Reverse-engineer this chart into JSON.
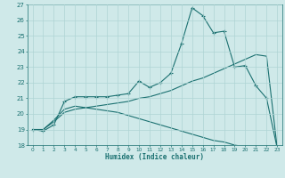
{
  "xlabel": "Humidex (Indice chaleur)",
  "bg_color": "#cfe9e9",
  "line_color": "#1a7070",
  "grid_color": "#aed4d4",
  "xlim": [
    -0.5,
    23.5
  ],
  "ylim": [
    18,
    27
  ],
  "xticks": [
    0,
    1,
    2,
    3,
    4,
    5,
    6,
    7,
    8,
    9,
    10,
    11,
    12,
    13,
    14,
    15,
    16,
    17,
    18,
    19,
    20,
    21,
    22,
    23
  ],
  "yticks": [
    18,
    19,
    20,
    21,
    22,
    23,
    24,
    25,
    26,
    27
  ],
  "line1_x": [
    0,
    1,
    2,
    3,
    4,
    5,
    6,
    7,
    8,
    9,
    10,
    11,
    12,
    13,
    14,
    15,
    16,
    17,
    18,
    19,
    20,
    21,
    22,
    23
  ],
  "line1_y": [
    19.0,
    18.9,
    19.3,
    20.8,
    21.1,
    21.1,
    21.1,
    21.1,
    21.2,
    21.3,
    22.1,
    21.7,
    22.0,
    22.6,
    24.5,
    26.8,
    26.3,
    25.2,
    25.3,
    23.0,
    23.1,
    21.8,
    21.0,
    17.8
  ],
  "line2_x": [
    0,
    1,
    2,
    3,
    4,
    5,
    6,
    7,
    8,
    9,
    10,
    11,
    12,
    13,
    14,
    15,
    16,
    17,
    18,
    19,
    20,
    21,
    22,
    23
  ],
  "line2_y": [
    19.0,
    19.0,
    19.5,
    20.1,
    20.3,
    20.4,
    20.5,
    20.6,
    20.7,
    20.8,
    21.0,
    21.1,
    21.3,
    21.5,
    21.8,
    22.1,
    22.3,
    22.6,
    22.9,
    23.2,
    23.5,
    23.8,
    23.7,
    17.8
  ],
  "line3_x": [
    0,
    1,
    2,
    3,
    4,
    5,
    6,
    7,
    8,
    9,
    10,
    11,
    12,
    13,
    14,
    15,
    16,
    17,
    18,
    19,
    20,
    21,
    22,
    23
  ],
  "line3_y": [
    19.0,
    19.0,
    19.6,
    20.3,
    20.5,
    20.4,
    20.3,
    20.2,
    20.1,
    19.9,
    19.7,
    19.5,
    19.3,
    19.1,
    18.9,
    18.7,
    18.5,
    18.3,
    18.2,
    18.0,
    17.9,
    17.8,
    17.8,
    17.8
  ]
}
